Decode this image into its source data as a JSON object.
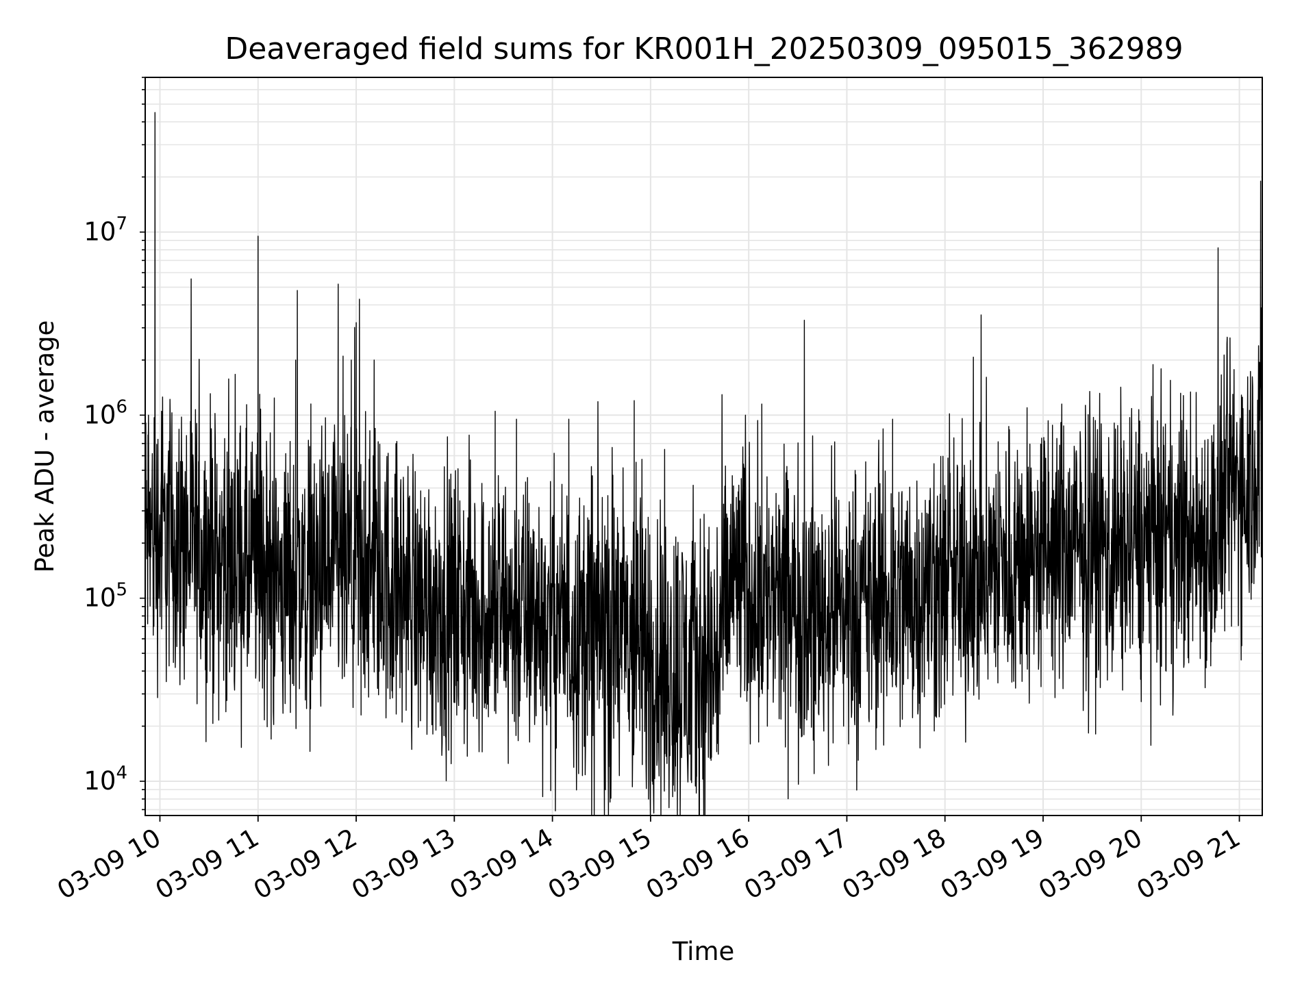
{
  "chart_data": {
    "type": "line",
    "title": "Deaveraged field sums for KR001H_20250309_095015_362989",
    "xlabel": "Time",
    "ylabel": "Peak ADU - average",
    "yscale": "log",
    "ylim": [
      6500,
      70000000
    ],
    "xlim": [
      "2025-03-09 09:51",
      "2025-03-09 21:14"
    ],
    "grid": true,
    "line_color": "#000000",
    "grid_color": "#e5e5e5",
    "x_ticks": [
      {
        "value": "2025-03-09 10:00",
        "label": "03-09 10"
      },
      {
        "value": "2025-03-09 11:00",
        "label": "03-09 11"
      },
      {
        "value": "2025-03-09 12:00",
        "label": "03-09 12"
      },
      {
        "value": "2025-03-09 13:00",
        "label": "03-09 13"
      },
      {
        "value": "2025-03-09 14:00",
        "label": "03-09 14"
      },
      {
        "value": "2025-03-09 15:00",
        "label": "03-09 15"
      },
      {
        "value": "2025-03-09 16:00",
        "label": "03-09 16"
      },
      {
        "value": "2025-03-09 17:00",
        "label": "03-09 17"
      },
      {
        "value": "2025-03-09 18:00",
        "label": "03-09 18"
      },
      {
        "value": "2025-03-09 19:00",
        "label": "03-09 19"
      },
      {
        "value": "2025-03-09 20:00",
        "label": "03-09 20"
      },
      {
        "value": "2025-03-09 21:00",
        "label": "03-09 21"
      }
    ],
    "y_ticks": [
      {
        "value": 10000,
        "base": "10",
        "exp": "4"
      },
      {
        "value": 100000,
        "base": "10",
        "exp": "5"
      },
      {
        "value": 1000000,
        "base": "10",
        "exp": "6"
      },
      {
        "value": 10000000,
        "base": "10",
        "exp": "7"
      }
    ],
    "baseline": {
      "description_units": "approximate median level of the series (ADU) at each time",
      "points": [
        {
          "t": "2025-03-09 09:51",
          "y": 230000
        },
        {
          "t": "2025-03-09 10:15",
          "y": 200000
        },
        {
          "t": "2025-03-09 10:45",
          "y": 150000
        },
        {
          "t": "2025-03-09 11:15",
          "y": 120000
        },
        {
          "t": "2025-03-09 11:45",
          "y": 130000
        },
        {
          "t": "2025-03-09 12:15",
          "y": 130000
        },
        {
          "t": "2025-03-09 12:45",
          "y": 90000
        },
        {
          "t": "2025-03-09 13:15",
          "y": 85000
        },
        {
          "t": "2025-03-09 13:45",
          "y": 80000
        },
        {
          "t": "2025-03-09 14:15",
          "y": 70000
        },
        {
          "t": "2025-03-09 14:45",
          "y": 60000
        },
        {
          "t": "2025-03-09 15:00",
          "y": 50000
        },
        {
          "t": "2025-03-09 15:20",
          "y": 40000
        },
        {
          "t": "2025-03-09 15:40",
          "y": 45000
        },
        {
          "t": "2025-03-09 15:50",
          "y": 130000
        },
        {
          "t": "2025-03-09 16:15",
          "y": 90000
        },
        {
          "t": "2025-03-09 16:45",
          "y": 85000
        },
        {
          "t": "2025-03-09 17:15",
          "y": 90000
        },
        {
          "t": "2025-03-09 17:45",
          "y": 110000
        },
        {
          "t": "2025-03-09 18:15",
          "y": 130000
        },
        {
          "t": "2025-03-09 18:45",
          "y": 160000
        },
        {
          "t": "2025-03-09 19:15",
          "y": 180000
        },
        {
          "t": "2025-03-09 19:45",
          "y": 190000
        },
        {
          "t": "2025-03-09 20:15",
          "y": 200000
        },
        {
          "t": "2025-03-09 20:45",
          "y": 220000
        },
        {
          "t": "2025-03-09 20:52",
          "y": 350000
        },
        {
          "t": "2025-03-09 21:05",
          "y": 480000
        },
        {
          "t": "2025-03-09 21:14",
          "y": 600000
        }
      ]
    },
    "spikes": [
      {
        "t": "2025-03-09 09:53",
        "y": 1000000
      },
      {
        "t": "2025-03-09 09:57",
        "y": 45000000
      },
      {
        "t": "2025-03-09 10:01",
        "y": 1050000
      },
      {
        "t": "2025-03-09 11:00",
        "y": 9500000
      },
      {
        "t": "2025-03-09 11:01",
        "y": 1300000
      },
      {
        "t": "2025-03-09 11:23",
        "y": 2000000
      },
      {
        "t": "2025-03-09 11:24",
        "y": 4800000
      },
      {
        "t": "2025-03-09 11:49",
        "y": 5200000
      },
      {
        "t": "2025-03-09 11:52",
        "y": 2100000
      },
      {
        "t": "2025-03-09 11:57",
        "y": 2000000
      },
      {
        "t": "2025-03-09 12:00",
        "y": 3200000
      },
      {
        "t": "2025-03-09 12:02",
        "y": 4300000
      },
      {
        "t": "2025-03-09 12:11",
        "y": 2000000
      },
      {
        "t": "2025-03-09 13:25",
        "y": 1050000
      },
      {
        "t": "2025-03-09 13:38",
        "y": 950000
      },
      {
        "t": "2025-03-09 14:10",
        "y": 950000
      },
      {
        "t": "2025-03-09 14:50",
        "y": 1200000
      },
      {
        "t": "2025-03-09 15:58",
        "y": 1000000
      },
      {
        "t": "2025-03-09 16:08",
        "y": 1150000
      },
      {
        "t": "2025-03-09 16:34",
        "y": 3300000
      },
      {
        "t": "2025-03-09 17:28",
        "y": 950000
      },
      {
        "t": "2025-03-09 20:47",
        "y": 8200000
      },
      {
        "t": "2025-03-09 20:56",
        "y": 1300000
      },
      {
        "t": "2025-03-09 21:13",
        "y": 19000000
      }
    ],
    "dips": [
      {
        "t": "2025-03-09 11:08",
        "y": 17000
      },
      {
        "t": "2025-03-09 12:03",
        "y": 23000
      },
      {
        "t": "2025-03-09 12:55",
        "y": 13000
      },
      {
        "t": "2025-03-09 13:33",
        "y": 14000
      },
      {
        "t": "2025-03-09 14:16",
        "y": 11000
      },
      {
        "t": "2025-03-09 14:35",
        "y": 12000
      },
      {
        "t": "2025-03-09 15:01",
        "y": 10000
      },
      {
        "t": "2025-03-09 15:10",
        "y": 12500
      },
      {
        "t": "2025-03-09 15:28",
        "y": 10500
      },
      {
        "t": "2025-03-09 15:37",
        "y": 13000
      },
      {
        "t": "2025-03-09 16:40",
        "y": 11000
      },
      {
        "t": "2025-03-09 16:58",
        "y": 20000
      }
    ]
  }
}
